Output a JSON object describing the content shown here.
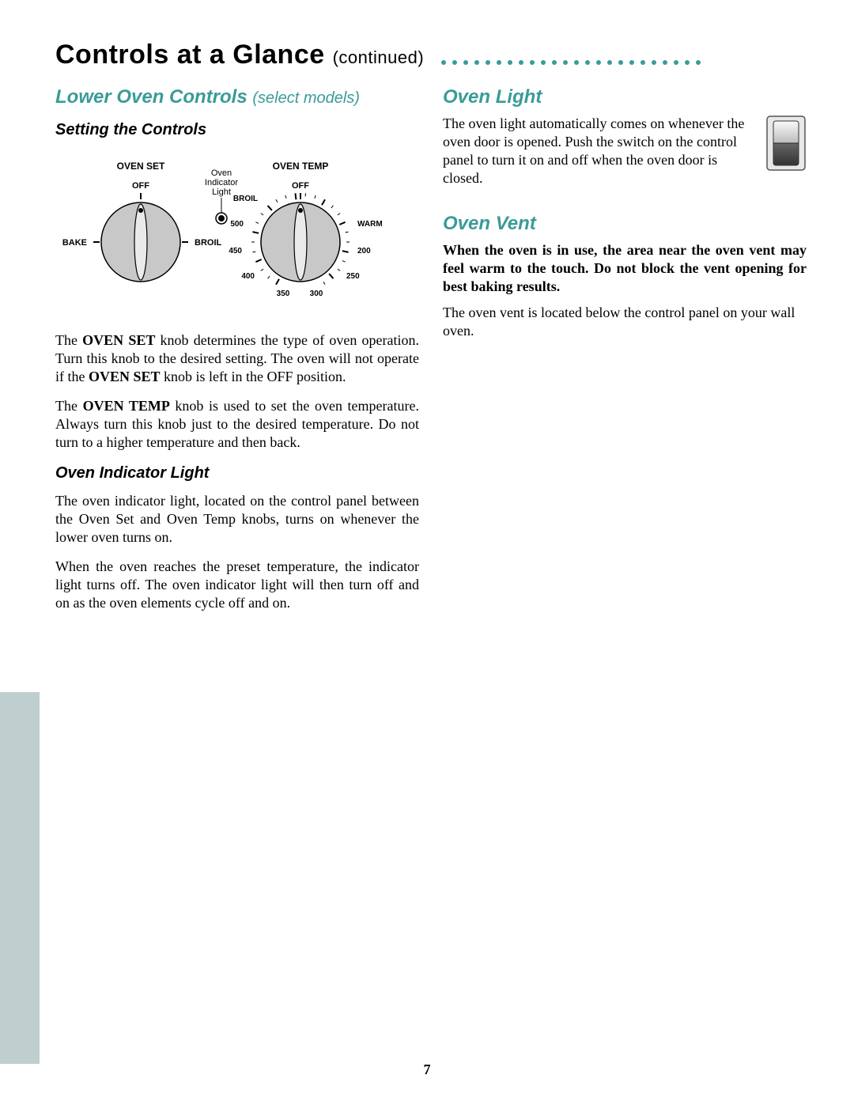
{
  "page": {
    "main_title": "Controls at a Glance",
    "continued": "(continued)",
    "page_number": "7",
    "dot_color": "#3a9b97",
    "dot_count": 24,
    "teal_color": "#3a9b97"
  },
  "left_col": {
    "title": "Lower Oven Controls",
    "title_sub": "(select models)",
    "setting_controls_heading": "Setting the Controls",
    "knob_diagram": {
      "oven_set_label": "OVEN SET",
      "oven_temp_label": "OVEN TEMP",
      "indicator_label_1": "Oven",
      "indicator_label_2": "Indicator",
      "indicator_label_3": "Light",
      "left_knob": {
        "top": "OFF",
        "left": "BAKE",
        "right": "BROIL"
      },
      "right_knob": {
        "top": "OFF",
        "positions": [
          "BROIL",
          "500",
          "450",
          "400",
          "350",
          "300",
          "250",
          "200",
          "WARM"
        ]
      },
      "knob_fill": "#c8c8c8",
      "knob_stroke": "#000000"
    },
    "para1_pre": "The ",
    "para1_b1": "OVEN SET",
    "para1_mid": " knob determines the type of oven operation. Turn this knob to the desired setting. The oven will not operate if the ",
    "para1_b2": "OVEN SET",
    "para1_post": " knob is left in the OFF position.",
    "para2_pre": "The ",
    "para2_b1": "OVEN TEMP",
    "para2_post": " knob is used to set the oven temperature. Always turn this knob just to the desired temperature. Do not turn to a higher temperature and then back.",
    "indicator_heading": "Oven Indicator Light",
    "indicator_p1": "The oven indicator light, located on the control panel between the Oven Set and Oven Temp knobs, turns on whenever the lower oven turns on.",
    "indicator_p2": "When the oven reaches the preset temperature, the indicator light turns off. The oven indicator light will then turn off and on as the oven elements cycle off and on."
  },
  "right_col": {
    "light_heading": "Oven Light",
    "light_para": "The oven light automatically comes on whenever the oven door is opened. Push the switch on the control panel to turn it on and off when the oven door is closed.",
    "vent_heading": "Oven Vent",
    "vent_bold": "When the oven is in use, the area near the oven vent may feel warm to the touch. Do not block the vent opening for best baking results.",
    "vent_para": "The oven vent is located below the control panel on your wall oven."
  }
}
